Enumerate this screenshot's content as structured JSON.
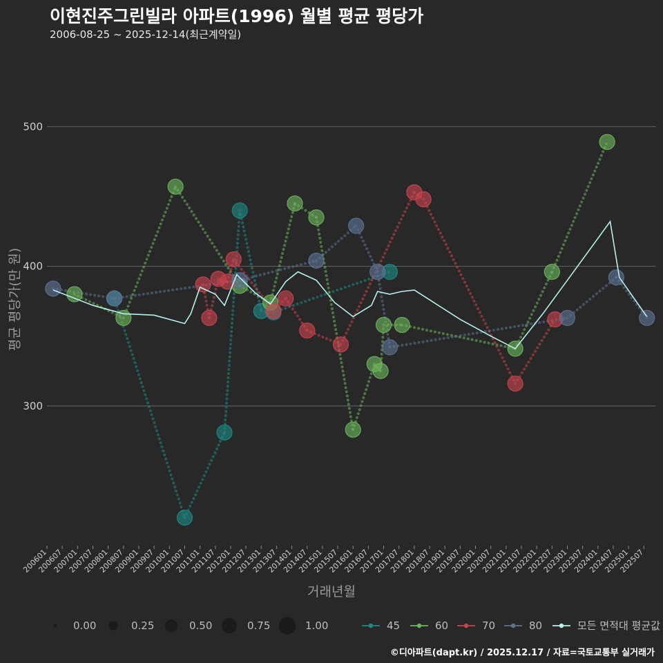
{
  "header": {
    "title": "이현진주그린빌라 아파트(1996) 월별 평균 평당가",
    "subtitle": "2006-08-25 ~ 2025-12-14(최근계약일)"
  },
  "caption": "©디아파트(dapt.kr) / 2025.12.17 / 자료=국토교통부 실거래가",
  "chart_data": {
    "type": "scatter",
    "title": "이현진주그린빌라 아파트(1996) 월별 평균 평당가",
    "xlabel": "거래년월",
    "ylabel": "평균 평당가(만 원)",
    "ylim": [
      200,
      560
    ],
    "yticks": [
      300,
      400,
      500
    ],
    "xlim": [
      2006.0,
      2025.9
    ],
    "x_ticks": [
      "200601",
      "200607",
      "200701",
      "200707",
      "200801",
      "200807",
      "200901",
      "200907",
      "201001",
      "201007",
      "201101",
      "201107",
      "201201",
      "201207",
      "201301",
      "201307",
      "201401",
      "201407",
      "201501",
      "201507",
      "201601",
      "201607",
      "201701",
      "201707",
      "201801",
      "201807",
      "201901",
      "201907",
      "202001",
      "202007",
      "202101",
      "202107",
      "202201",
      "202207",
      "202301",
      "202307",
      "202401",
      "202407",
      "202501",
      "202507"
    ],
    "colors": {
      "45": "#1d8a86",
      "60": "#6db55c",
      "70": "#c9444d",
      "80": "#5e7394",
      "avg": "#b9f1ee"
    },
    "size_legend": {
      "values": [
        "0.00",
        "0.25",
        "0.50",
        "0.75",
        "1.00"
      ]
    },
    "legend_labels": [
      "45",
      "60",
      "70",
      "80",
      "모든 면적대 평균값"
    ],
    "series": [
      {
        "name": "45",
        "points": [
          [
            2008.2,
            377
          ],
          [
            2010.5,
            220
          ],
          [
            2011.8,
            281
          ],
          [
            2012.3,
            440
          ],
          [
            2013.0,
            368
          ],
          [
            2013.4,
            367
          ],
          [
            2017.2,
            396
          ]
        ]
      },
      {
        "name": "60",
        "points": [
          [
            2006.9,
            380
          ],
          [
            2008.5,
            363
          ],
          [
            2010.2,
            457
          ],
          [
            2012.3,
            386
          ],
          [
            2013.3,
            374
          ],
          [
            2014.1,
            445
          ],
          [
            2014.8,
            435
          ],
          [
            2016.0,
            283
          ],
          [
            2016.7,
            330
          ],
          [
            2016.9,
            325
          ],
          [
            2017.0,
            358
          ],
          [
            2017.6,
            358
          ],
          [
            2021.3,
            341
          ],
          [
            2022.5,
            396
          ],
          [
            2024.3,
            489
          ]
        ]
      },
      {
        "name": "70",
        "points": [
          [
            2011.1,
            387
          ],
          [
            2011.3,
            363
          ],
          [
            2011.6,
            391
          ],
          [
            2011.9,
            389
          ],
          [
            2012.1,
            405
          ],
          [
            2013.4,
            368
          ],
          [
            2013.8,
            377
          ],
          [
            2014.5,
            354
          ],
          [
            2015.6,
            344
          ],
          [
            2018.0,
            453
          ],
          [
            2018.3,
            448
          ],
          [
            2021.3,
            316
          ],
          [
            2022.6,
            362
          ]
        ]
      },
      {
        "name": "80",
        "points": [
          [
            2006.2,
            384
          ],
          [
            2008.2,
            377
          ],
          [
            2012.3,
            390
          ],
          [
            2014.8,
            404
          ],
          [
            2016.1,
            429
          ],
          [
            2016.8,
            396
          ],
          [
            2017.2,
            342
          ],
          [
            2023.0,
            363
          ],
          [
            2024.6,
            392
          ],
          [
            2025.6,
            363
          ]
        ]
      }
    ],
    "average_line": [
      [
        2006.2,
        383
      ],
      [
        2007.5,
        372
      ],
      [
        2008.5,
        366
      ],
      [
        2009.5,
        365
      ],
      [
        2010.5,
        359
      ],
      [
        2010.7,
        366
      ],
      [
        2011.0,
        385
      ],
      [
        2011.5,
        380
      ],
      [
        2011.8,
        372
      ],
      [
        2012.2,
        394
      ],
      [
        2012.8,
        381
      ],
      [
        2013.3,
        373
      ],
      [
        2013.8,
        389
      ],
      [
        2014.2,
        396
      ],
      [
        2014.8,
        390
      ],
      [
        2015.4,
        374
      ],
      [
        2016.0,
        364
      ],
      [
        2016.6,
        372
      ],
      [
        2016.8,
        382
      ],
      [
        2017.2,
        380
      ],
      [
        2017.6,
        382
      ],
      [
        2018.0,
        383
      ],
      [
        2018.5,
        376
      ],
      [
        2019.5,
        362
      ],
      [
        2020.5,
        350
      ],
      [
        2021.3,
        341
      ],
      [
        2022.2,
        366
      ],
      [
        2023.0,
        390
      ],
      [
        2023.7,
        411
      ],
      [
        2024.4,
        432
      ],
      [
        2024.7,
        392
      ],
      [
        2025.6,
        364
      ]
    ]
  }
}
